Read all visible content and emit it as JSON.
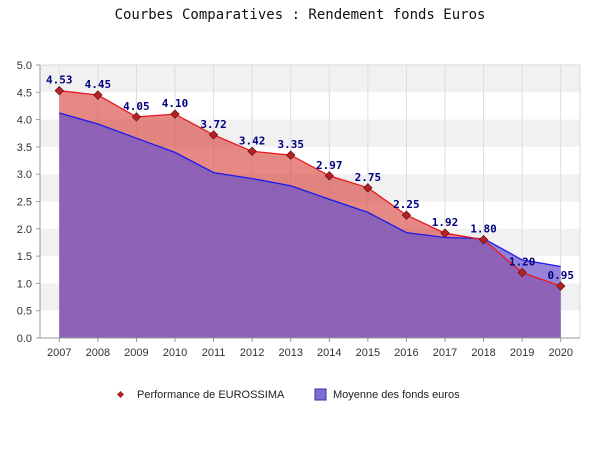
{
  "chart_data": {
    "type": "area",
    "title": "Courbes Comparatives : Rendement fonds Euros",
    "categories": [
      "2007",
      "2008",
      "2009",
      "2010",
      "2011",
      "2012",
      "2013",
      "2014",
      "2015",
      "2016",
      "2017",
      "2018",
      "2019",
      "2020"
    ],
    "series": [
      {
        "name": "Performance de EUROSSIMA",
        "values": [
          4.53,
          4.45,
          4.05,
          4.1,
          3.72,
          3.42,
          3.35,
          2.97,
          2.75,
          2.25,
          1.92,
          1.8,
          1.2,
          0.95
        ],
        "labels": [
          "4.53",
          "4.45",
          "4.05",
          "4.10",
          "3.72",
          "3.42",
          "3.35",
          "2.97",
          "2.75",
          "2.25",
          "1.92",
          "1.80",
          "1.20",
          "0.95"
        ],
        "line_color": "#e8191e",
        "marker_color": "#b22222"
      },
      {
        "name": "Moyenne des fonds euros",
        "values": [
          4.12,
          3.92,
          3.66,
          3.4,
          3.03,
          2.92,
          2.79,
          2.54,
          2.3,
          1.93,
          1.84,
          1.82,
          1.43,
          1.31
        ],
        "line_color": "#1a1aee",
        "fill_color": "#7b6fd6"
      }
    ],
    "ylim": [
      0,
      5
    ],
    "yticks": [
      "0.0",
      "0.5",
      "1.0",
      "1.5",
      "2.0",
      "2.5",
      "3.0",
      "3.5",
      "4.0",
      "4.5",
      "5.0"
    ],
    "grid": true,
    "legend_position": "bottom"
  }
}
